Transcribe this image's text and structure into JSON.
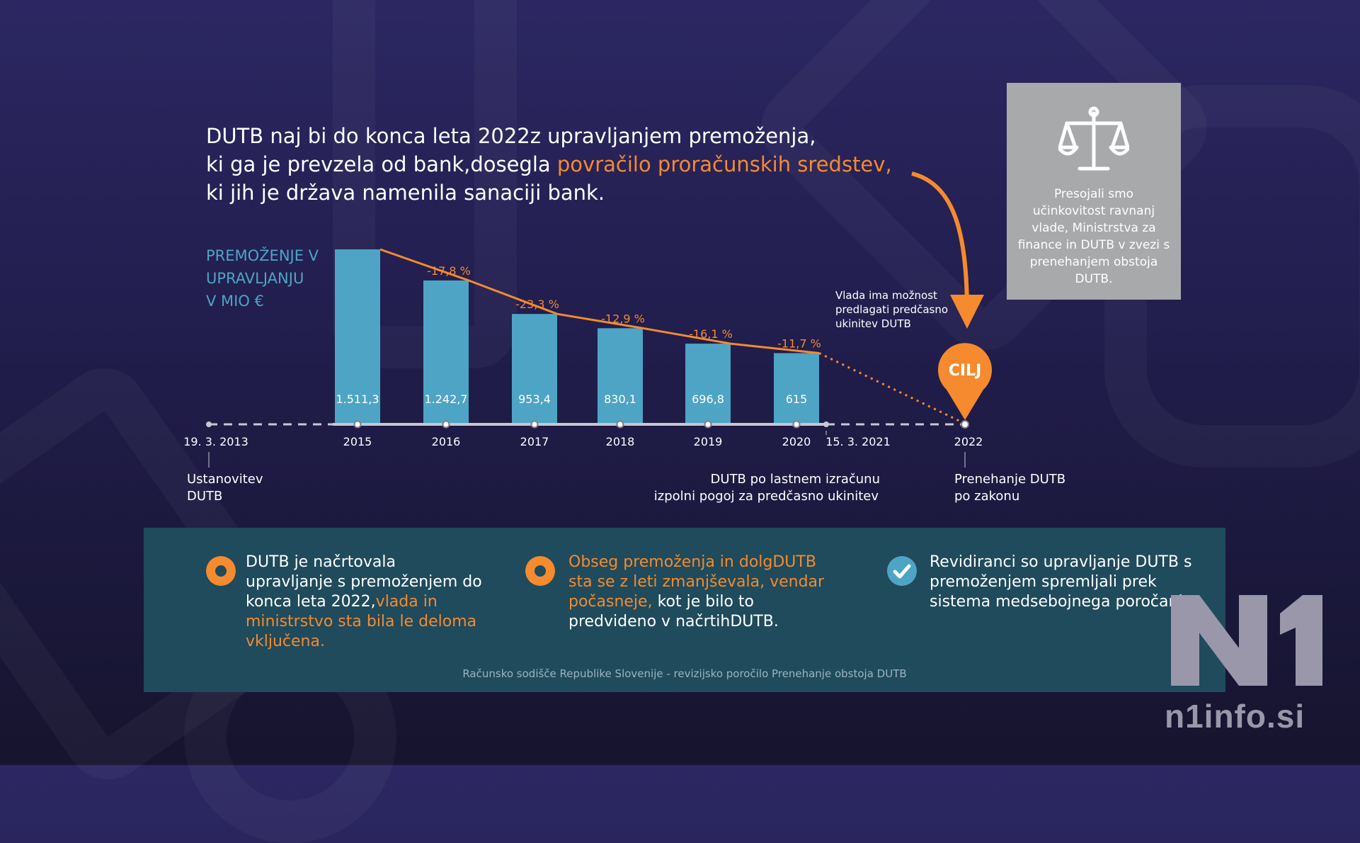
{
  "headline": {
    "line1": "DUTB naj bi do konca leta 2022z upravljanjem premoženja,",
    "line2_start": "ki ga je prevzela od bank,dosegla",
    "line2_highlight": "povračilo proračunskih sredstev,",
    "line3": "ki jih je država namenila sanaciji bank."
  },
  "info_box": {
    "icon": "scales-icon",
    "text": "Presojali smo učinkovitost ravnanj vlade, Ministrstva za finance in DUTB v zvezi s prenehanjem obstoja DUTB."
  },
  "chart_data": {
    "type": "bar",
    "title": "",
    "ylabel": "PREMOŽENJE V UPRAVLJANJU V MIO €",
    "ylabel_lines": [
      "PREMOŽENJE V",
      "UPRAVLJANJU",
      "V MIO €"
    ],
    "categories": [
      "2015",
      "2016",
      "2017",
      "2018",
      "2019",
      "2020"
    ],
    "values": [
      1511.3,
      1242.7,
      953.4,
      830.1,
      696.8,
      615
    ],
    "value_labels": [
      "1.511,3",
      "1.242,7",
      "953,4",
      "830,1",
      "696,8",
      "615"
    ],
    "change_labels": [
      "",
      "-17,8 %",
      "-23,3 %",
      "-12,9 %",
      "-16,1 %",
      "-11,7 %"
    ],
    "ylim": [
      0,
      1511.3
    ],
    "timeline": {
      "start_date": "19. 3. 2013",
      "start_note": [
        "Ustanovitev",
        "DUTB"
      ],
      "milestone_date": "15. 3. 2021",
      "milestone_note": [
        "DUTB po lastnem izračunu",
        "izpolni pogoj za predčasno ukinitev"
      ],
      "end_year": "2022",
      "end_note": [
        "Prenehanje DUTB",
        "po zakonu"
      ],
      "goal_label": "CILJ",
      "option_note": [
        "Vlada ima možnost",
        "predlagati predčasno",
        "ukinitev DUTB"
      ]
    }
  },
  "findings": [
    {
      "icon": "target-icon",
      "text_start": "DUTB je načrtovala upravljanje s premoženjem do konca leta 2022,",
      "text_highlight": "vlada in ministrstvo sta bila le deloma vključena.",
      "text_end": ""
    },
    {
      "icon": "target-icon",
      "text_start": "",
      "text_highlight": "Obseg premoženja in dolgDUTB sta se z leti zmanjševala, vendar počasneje,",
      "text_end": " kot je bilo to predvideno v načrtihDUTB."
    },
    {
      "icon": "check-icon",
      "text_start": "Revidiranci so upravljanje DUTB s premoženjem spremljali prek sistema medsebojnega poročanja.",
      "text_highlight": "",
      "text_end": ""
    }
  ],
  "source": "Računsko sodišče Republike Slovenije - revizijsko poročilo Prenehanje obstoja DUTB",
  "brand": {
    "logo_text": "N1",
    "site": "n1info.si"
  },
  "colors": {
    "accent": "#f58a2e",
    "bar": "#4ea4c4",
    "panel": "#1f4b5c",
    "background": "#252157"
  }
}
